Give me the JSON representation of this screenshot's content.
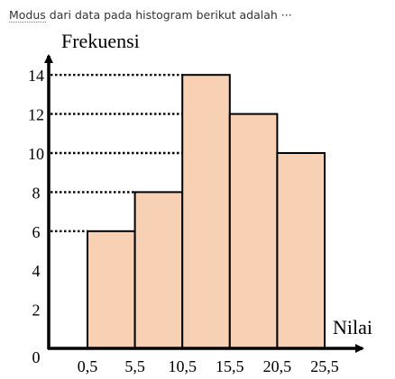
{
  "question": {
    "link_text": "Modus",
    "rest_text": " dari data pada histogram berikut adalah ···"
  },
  "chart_data": {
    "type": "bar",
    "histogram": true,
    "ylabel": "Frekuensi",
    "xlabel": "Nilai",
    "bin_edges": [
      "0,5",
      "5,5",
      "10,5",
      "15,5",
      "20,5",
      "25,5"
    ],
    "categories": [
      "0,5 - 5,5",
      "5,5 - 10,5",
      "10,5 - 15,5",
      "15,5 - 20,5",
      "20,5 - 25,5"
    ],
    "values": [
      6,
      8,
      14,
      12,
      10
    ],
    "y_ticks": [
      0,
      2,
      4,
      6,
      8,
      10,
      12,
      14
    ],
    "ylim": [
      0,
      16
    ],
    "grid": false,
    "guide_lines": [
      6,
      8,
      10,
      12,
      14
    ],
    "bar_fill": "#f8d1b4",
    "bar_stroke": "#000000"
  }
}
